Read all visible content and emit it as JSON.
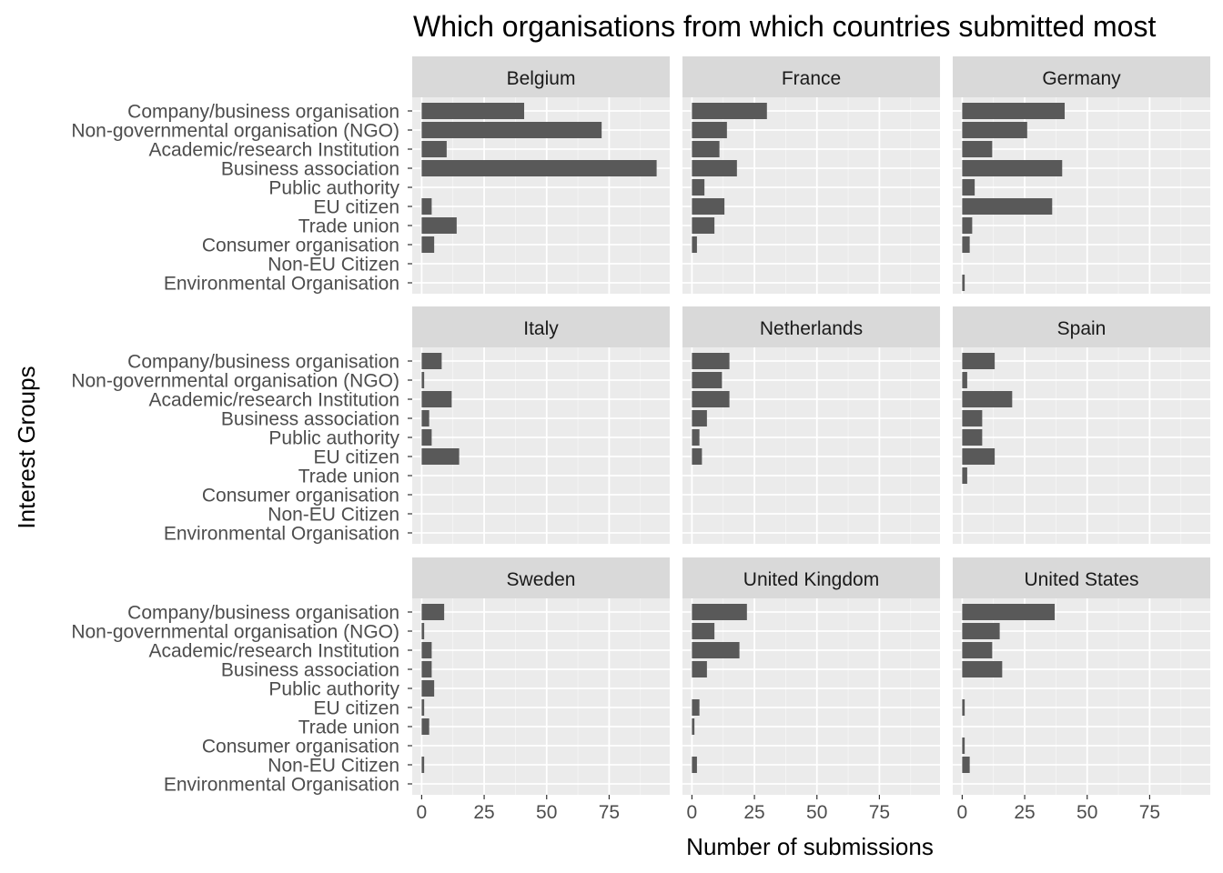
{
  "chart_data": {
    "type": "bar",
    "orientation": "horizontal",
    "title": "Which organisations from which countries submitted most",
    "xlabel": "Number of submissions",
    "ylabel": "Interest Groups",
    "xlim": [
      0,
      100
    ],
    "xticks": [
      0,
      25,
      50,
      75
    ],
    "grid": true,
    "colors": {
      "panel_background": "#ebebeb",
      "grid_major": "#ffffff",
      "strip_background": "#d9d9d9",
      "bar": "#595959"
    },
    "categories": [
      "Company/business organisation",
      "Non-governmental organisation (NGO)",
      "Academic/research Institution",
      "Business association",
      "Public authority",
      "EU citizen",
      "Trade union",
      "Consumer organisation",
      "Non-EU Citizen",
      "Environmental Organisation"
    ],
    "facets": [
      {
        "name": "Belgium",
        "values": [
          41,
          72,
          10,
          94,
          0,
          4,
          14,
          5,
          0,
          0
        ]
      },
      {
        "name": "France",
        "values": [
          30,
          14,
          11,
          18,
          5,
          13,
          9,
          2,
          0,
          0
        ]
      },
      {
        "name": "Germany",
        "values": [
          41,
          26,
          12,
          40,
          5,
          36,
          4,
          3,
          0,
          1
        ]
      },
      {
        "name": "Italy",
        "values": [
          8,
          1,
          12,
          3,
          4,
          15,
          0,
          0,
          0,
          0
        ]
      },
      {
        "name": "Netherlands",
        "values": [
          15,
          12,
          15,
          6,
          3,
          4,
          0,
          0,
          0,
          0
        ]
      },
      {
        "name": "Spain",
        "values": [
          13,
          2,
          20,
          8,
          8,
          13,
          2,
          0,
          0,
          0
        ]
      },
      {
        "name": "Sweden",
        "values": [
          9,
          1,
          4,
          4,
          5,
          1,
          3,
          0,
          1,
          0
        ]
      },
      {
        "name": "United Kingdom",
        "values": [
          22,
          9,
          19,
          6,
          0,
          3,
          1,
          0,
          2,
          0
        ]
      },
      {
        "name": "United States",
        "values": [
          37,
          15,
          12,
          16,
          0,
          1,
          0,
          1,
          3,
          0
        ]
      }
    ]
  }
}
